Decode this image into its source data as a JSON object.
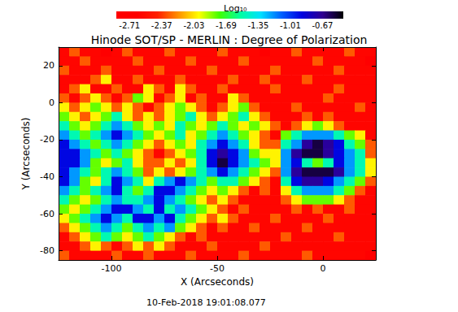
{
  "chart_data": {
    "type": "heatmap",
    "title": "Hinode SOT/SP - MERLIN : Degree of Polarization",
    "subtitle": "10-Feb-2018 19:01:08.077",
    "x_label": "X (Arcseconds)",
    "y_label": "Y (Arcseconds)",
    "xlim": [
      -125,
      25
    ],
    "ylim": [
      -85,
      30
    ],
    "xticks": [
      -100,
      -50,
      0
    ],
    "yticks": [
      -80,
      -60,
      -40,
      -20,
      0,
      20
    ],
    "colorbar": {
      "label": "Log₁₀",
      "range": [
        -2.85,
        -0.45
      ],
      "ticks": [
        -2.71,
        -2.37,
        -2.03,
        -1.69,
        -1.35,
        -1.01,
        -0.67
      ]
    },
    "x": [
      -122.5,
      -117.5,
      -112.5,
      -107.5,
      -102.5,
      -97.5,
      -92.5,
      -87.5,
      -82.5,
      -77.5,
      -72.5,
      -67.5,
      -62.5,
      -57.5,
      -52.5,
      -47.5,
      -42.5,
      -37.5,
      -32.5,
      -27.5,
      -22.5,
      -17.5,
      -12.5,
      -7.5,
      -2.5,
      2.5,
      7.5,
      12.5,
      17.5,
      22.5
    ],
    "y": [
      27.5,
      22.5,
      17.5,
      12.5,
      7.5,
      2.5,
      -2.5,
      -7.5,
      -12.5,
      -17.5,
      -22.5,
      -27.5,
      -32.5,
      -37.5,
      -42.5,
      -47.5,
      -52.5,
      -57.5,
      -62.5,
      -67.5,
      -72.5,
      -77.5,
      -82.5
    ],
    "values": [
      [
        -2.6,
        -2.3,
        -2.6,
        -2.6,
        -2.75,
        -2.6,
        -2.3,
        -2.6,
        -2.6,
        -2.6,
        -2.3,
        -2.6,
        -2.6,
        -2.6,
        -2.6,
        -2.3,
        -2.6,
        -2.6,
        -2.6,
        -2.75,
        -2.6,
        -2.6,
        -2.3,
        -2.6,
        -2.6,
        -2.6,
        -2.6,
        -2.3,
        -2.6,
        -2.6
      ],
      [
        -2.6,
        -2.6,
        -2.3,
        -2.6,
        -2.6,
        -2.6,
        -2.6,
        -2.3,
        -2.6,
        -2.6,
        -2.6,
        -2.6,
        -2.3,
        -2.6,
        -2.6,
        -2.6,
        -2.6,
        -2.3,
        -2.6,
        -2.6,
        -2.6,
        -2.6,
        -2.6,
        -2.6,
        -2.3,
        -2.6,
        -2.6,
        -2.6,
        -2.6,
        -2.75
      ],
      [
        -2.3,
        -2.6,
        -2.6,
        -2.6,
        -2.3,
        -2.6,
        -2.6,
        -2.6,
        -2.6,
        -2.3,
        -2.6,
        -2.6,
        -2.6,
        -2.6,
        -2.3,
        -2.6,
        -2.6,
        -2.6,
        -2.6,
        -2.6,
        -2.3,
        -2.6,
        -2.6,
        -2.6,
        -2.6,
        -2.6,
        -2.3,
        -2.6,
        -2.6,
        -2.6
      ],
      [
        -2.6,
        -2.6,
        -2.6,
        -2.3,
        -2.0,
        -2.6,
        -2.6,
        -2.3,
        -2.6,
        -2.6,
        -2.6,
        -2.3,
        -2.6,
        -2.6,
        -2.6,
        -2.6,
        -2.3,
        -2.6,
        -2.6,
        -2.3,
        -2.6,
        -2.6,
        -2.6,
        -2.3,
        -2.6,
        -2.6,
        -2.6,
        -2.6,
        -2.6,
        -2.6
      ],
      [
        -2.6,
        -2.3,
        -2.0,
        -2.6,
        -2.6,
        -2.3,
        -2.6,
        -2.6,
        -2.0,
        -2.3,
        -2.6,
        -2.0,
        -2.3,
        -2.6,
        -2.6,
        -2.3,
        -2.6,
        -2.6,
        -2.6,
        -2.6,
        -2.3,
        -2.6,
        -2.6,
        -2.6,
        -2.6,
        -2.6,
        -2.3,
        -2.6,
        -2.6,
        -2.6
      ],
      [
        -2.3,
        -2.6,
        -2.3,
        -2.0,
        -2.3,
        -2.6,
        -2.3,
        -1.8,
        -2.0,
        -2.6,
        -2.3,
        -2.0,
        -2.6,
        -2.3,
        -2.6,
        -2.6,
        -2.0,
        -2.3,
        -2.6,
        -2.6,
        -2.6,
        -2.6,
        -2.6,
        -2.6,
        -2.6,
        -2.3,
        -2.6,
        -2.6,
        -2.6,
        -2.6
      ],
      [
        -2.0,
        -2.3,
        -2.0,
        -1.8,
        -2.0,
        -2.3,
        -2.0,
        -2.3,
        -2.6,
        -2.3,
        -2.0,
        -1.8,
        -2.0,
        -2.3,
        -2.6,
        -2.3,
        -2.0,
        -1.8,
        -2.3,
        -2.6,
        -2.6,
        -2.6,
        -2.3,
        -2.6,
        -2.6,
        -2.6,
        -2.6,
        -2.6,
        -2.3,
        -2.6
      ],
      [
        -1.8,
        -2.0,
        -2.3,
        -2.0,
        -1.8,
        -1.5,
        -2.0,
        -2.3,
        -2.0,
        -2.3,
        -2.0,
        -1.8,
        -1.5,
        -2.0,
        -2.3,
        -2.0,
        -1.8,
        -1.5,
        -2.0,
        -2.3,
        -2.6,
        -2.6,
        -2.6,
        -2.3,
        -2.6,
        -2.3,
        -2.6,
        -2.6,
        -2.6,
        -2.6
      ],
      [
        -1.5,
        -1.8,
        -2.0,
        -1.8,
        -1.5,
        -1.2,
        -1.5,
        -1.8,
        -2.0,
        -1.8,
        -2.0,
        -1.5,
        -1.8,
        -2.0,
        -1.8,
        -1.5,
        -1.8,
        -2.0,
        -1.8,
        -2.0,
        -2.3,
        -2.6,
        -2.3,
        -2.0,
        -1.8,
        -2.0,
        -2.3,
        -2.6,
        -2.6,
        -2.6
      ],
      [
        -1.2,
        -1.5,
        -1.8,
        -1.5,
        -1.2,
        -0.9,
        -1.2,
        -1.5,
        -1.8,
        -2.0,
        -1.8,
        -1.5,
        -2.0,
        -1.8,
        -1.5,
        -1.2,
        -1.5,
        -1.8,
        -2.0,
        -2.3,
        -2.6,
        -1.8,
        -1.5,
        -1.2,
        -1.2,
        -1.2,
        -1.5,
        -1.8,
        -2.0,
        -2.6
      ],
      [
        -0.9,
        -1.2,
        -1.5,
        -1.8,
        -1.5,
        -1.2,
        -1.5,
        -1.8,
        -2.0,
        -2.3,
        -2.0,
        -1.8,
        -2.0,
        -1.5,
        -1.2,
        -0.9,
        -1.2,
        -1.5,
        -2.0,
        -2.3,
        -2.3,
        -1.5,
        -1.2,
        -0.7,
        -0.55,
        -0.7,
        -0.9,
        -1.5,
        -1.8,
        -2.3
      ],
      [
        -0.9,
        -0.9,
        -1.2,
        -1.5,
        -1.8,
        -1.5,
        -1.8,
        -2.0,
        -2.3,
        -2.6,
        -2.3,
        -2.0,
        -1.8,
        -1.5,
        -0.9,
        -0.7,
        -0.9,
        -1.2,
        -1.8,
        -2.0,
        -2.0,
        -1.2,
        -0.7,
        -0.55,
        -0.55,
        -0.7,
        -0.9,
        -1.2,
        -1.5,
        -2.3
      ],
      [
        -0.9,
        -0.9,
        -1.2,
        -1.8,
        -2.0,
        -1.8,
        -1.5,
        -2.0,
        -2.3,
        -2.3,
        -2.0,
        -2.3,
        -2.0,
        -1.5,
        -0.9,
        -0.55,
        -0.9,
        -1.2,
        -1.5,
        -1.8,
        -2.0,
        -1.2,
        -0.9,
        -1.5,
        -1.8,
        -1.5,
        -0.9,
        -1.2,
        -1.5,
        -2.0
      ],
      [
        -0.9,
        -1.2,
        -1.5,
        -1.8,
        -1.5,
        -1.2,
        -1.5,
        -1.8,
        -2.3,
        -2.0,
        -2.3,
        -2.0,
        -1.8,
        -1.5,
        -1.2,
        -0.9,
        -1.2,
        -1.5,
        -1.8,
        -2.0,
        -2.3,
        -1.2,
        -0.7,
        -0.55,
        -0.55,
        -0.55,
        -0.7,
        -1.2,
        -1.5,
        -2.0
      ],
      [
        -0.9,
        -1.2,
        -1.8,
        -2.0,
        -1.5,
        -0.9,
        -1.2,
        -1.5,
        -2.0,
        -1.5,
        -1.2,
        -0.9,
        -1.2,
        -1.5,
        -1.8,
        -1.5,
        -1.5,
        -1.8,
        -2.0,
        -2.3,
        -2.6,
        -1.5,
        -0.9,
        -0.7,
        -0.7,
        -0.9,
        -1.2,
        -1.5,
        -1.8,
        -2.3
      ],
      [
        -1.2,
        -1.5,
        -1.8,
        -1.5,
        -1.2,
        -0.9,
        -1.5,
        -1.8,
        -1.5,
        -0.9,
        -0.9,
        -1.2,
        -1.5,
        -1.8,
        -2.0,
        -1.8,
        -2.0,
        -2.3,
        -2.6,
        -2.3,
        -2.6,
        -2.0,
        -1.5,
        -1.2,
        -1.2,
        -1.2,
        -1.5,
        -1.8,
        -2.3,
        -2.6
      ],
      [
        -1.5,
        -1.8,
        -2.0,
        -1.8,
        -1.5,
        -1.2,
        -1.5,
        -1.5,
        -1.2,
        -0.9,
        -1.2,
        -1.5,
        -1.8,
        -2.0,
        -2.3,
        -2.0,
        -2.3,
        -2.6,
        -2.6,
        -2.6,
        -2.6,
        -2.3,
        -2.0,
        -1.8,
        -1.8,
        -1.8,
        -2.0,
        -2.3,
        -2.6,
        -2.6
      ],
      [
        -1.8,
        -2.0,
        -1.8,
        -1.5,
        -1.2,
        -0.9,
        -0.9,
        -1.2,
        -1.5,
        -0.9,
        -1.5,
        -1.2,
        -1.5,
        -1.8,
        -2.0,
        -2.3,
        -2.6,
        -2.3,
        -2.6,
        -2.6,
        -2.6,
        -2.6,
        -2.3,
        -2.6,
        -2.3,
        -2.6,
        -2.6,
        -2.3,
        -2.6,
        -2.6
      ],
      [
        -2.0,
        -1.8,
        -1.5,
        -1.2,
        -0.9,
        -1.2,
        -1.5,
        -0.9,
        -0.9,
        -1.2,
        -0.9,
        -1.5,
        -1.8,
        -2.0,
        -2.3,
        -2.0,
        -2.3,
        -2.6,
        -2.6,
        -2.6,
        -2.3,
        -2.6,
        -2.6,
        -2.6,
        -2.6,
        -2.3,
        -2.6,
        -2.6,
        -2.6,
        -2.6
      ],
      [
        -2.3,
        -2.0,
        -1.8,
        -1.5,
        -1.2,
        -1.5,
        -1.8,
        -1.5,
        -1.2,
        -1.5,
        -1.2,
        -1.8,
        -2.0,
        -2.3,
        -2.6,
        -2.3,
        -2.6,
        -2.6,
        -2.3,
        -2.6,
        -2.6,
        -2.6,
        -2.6,
        -2.3,
        -2.6,
        -2.6,
        -2.6,
        -2.6,
        -2.6,
        -2.6
      ],
      [
        -2.6,
        -2.3,
        -2.0,
        -1.8,
        -1.5,
        -1.8,
        -2.0,
        -1.8,
        -1.5,
        -1.8,
        -2.0,
        -2.3,
        -2.6,
        -2.3,
        -2.6,
        -2.6,
        -2.6,
        -2.6,
        -2.6,
        -2.6,
        -2.6,
        -2.3,
        -2.6,
        -2.6,
        -2.6,
        -2.6,
        -2.3,
        -2.6,
        -2.6,
        -2.6
      ],
      [
        -2.6,
        -2.6,
        -2.3,
        -2.0,
        -2.3,
        -2.6,
        -2.3,
        -2.0,
        -2.3,
        -2.0,
        -2.3,
        -2.6,
        -2.6,
        -2.6,
        -2.3,
        -2.6,
        -2.6,
        -2.6,
        -2.6,
        -2.3,
        -2.6,
        -2.6,
        -2.6,
        -2.6,
        -2.6,
        -2.6,
        -2.6,
        -2.6,
        -2.6,
        -2.6
      ],
      [
        -2.3,
        -2.6,
        -2.6,
        -2.6,
        -2.6,
        -2.3,
        -2.6,
        -2.6,
        -2.3,
        -2.6,
        -2.6,
        -2.6,
        -2.3,
        -2.6,
        -2.6,
        -2.6,
        -2.6,
        -2.3,
        -2.6,
        -2.6,
        -2.6,
        -2.6,
        -2.6,
        -2.3,
        -2.6,
        -2.6,
        -2.6,
        -2.6,
        -2.6,
        -2.75
      ]
    ]
  }
}
